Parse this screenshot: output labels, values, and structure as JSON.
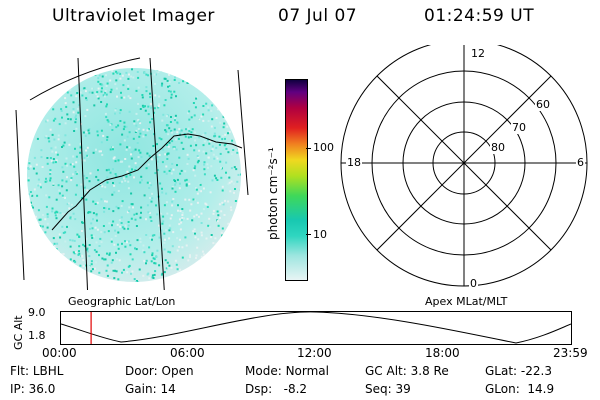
{
  "header": {
    "title": "Ultraviolet Imager",
    "date": "07 Jul 07",
    "time": "01:24:59 UT"
  },
  "colorbar": {
    "unit_label": "photon cm⁻²s⁻¹",
    "ticks": [
      "100",
      "10"
    ]
  },
  "polar_plot": {
    "mlt_labels": {
      "top": "12",
      "bottom": "0",
      "left": "18",
      "right": "6"
    },
    "lat_labels": [
      "60",
      "70",
      "80"
    ]
  },
  "altitude_panel": {
    "y_label": "GC Alt",
    "y_ticks": [
      "9.0",
      "1.8"
    ],
    "left_caption": "Geographic Lat/Lon",
    "right_caption": "Apex MLat/MLT",
    "time_ticks": [
      "00:00",
      "06:00",
      "12:00",
      "18:00",
      "23:59"
    ],
    "current_time_fraction": 0.059
  },
  "info": {
    "row1": [
      {
        "k": "Flt:",
        "v": "LBHL"
      },
      {
        "k": "Door:",
        "v": "Open"
      },
      {
        "k": "Mode:",
        "v": "Normal"
      },
      {
        "k": "GC Alt:",
        "v": "3.8 Re"
      },
      {
        "k": "GLat:",
        "v": "-22.3"
      }
    ],
    "row2": [
      {
        "k": "IP:",
        "v": "36.0"
      },
      {
        "k": "Gain:",
        "v": "14"
      },
      {
        "k": "Dsp:",
        "v": "-8.2"
      },
      {
        "k": "Seq:",
        "v": "39"
      },
      {
        "k": "GLon:",
        "v": "14.9"
      }
    ]
  },
  "colors": {
    "image_base": "#a8ecec",
    "image_bright": "#22d8b4",
    "marker": "#e00000"
  }
}
